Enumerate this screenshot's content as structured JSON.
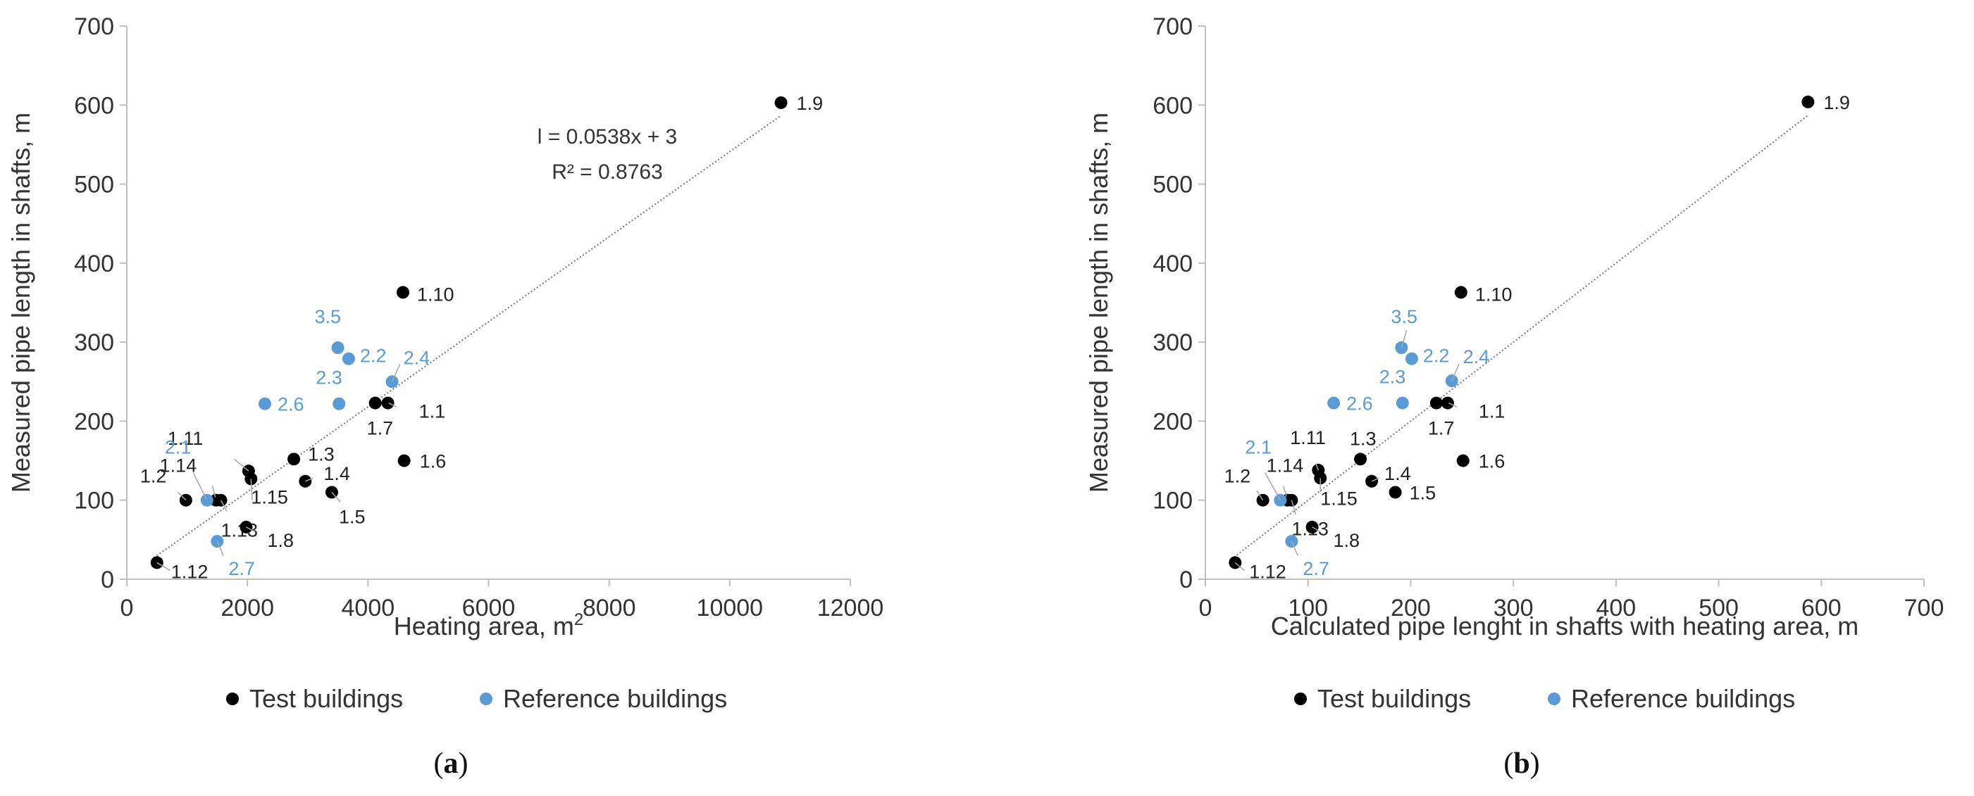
{
  "colors": {
    "test": "#000000",
    "reference": "#5b9bd5",
    "axis": "#bfbfbf",
    "trend": "#7f7f7f",
    "leader": "#a6a6a6"
  },
  "chart_data": [
    {
      "id": "a",
      "type": "scatter",
      "caption": "(a)",
      "caption_letter": "a",
      "xlabel": "Heating area, m",
      "xlabel_sup": "2",
      "ylabel": "Measured pipe length in shafts, m",
      "xlim": [
        0,
        12000
      ],
      "ylim": [
        0,
        700
      ],
      "xticks": [
        "0",
        "2000",
        "4000",
        "6000",
        "8000",
        "10000",
        "12000"
      ],
      "yticks": [
        "0",
        "100",
        "200",
        "300",
        "400",
        "500",
        "600",
        "700"
      ],
      "legend": [
        "Test buildings",
        "Reference buildings"
      ],
      "trendline": {
        "slope": 0.0538,
        "intercept": 3,
        "x_from": 450,
        "x_to": 10850,
        "equation": "l = 0.0538x + 3",
        "r2": "R² = 0.8763"
      },
      "series": [
        {
          "name": "Test buildings",
          "points": [
            {
              "label": "1.9",
              "x": 10850,
              "y": 603
            },
            {
              "label": "1.10",
              "x": 4580,
              "y": 363
            },
            {
              "label": "1.1",
              "x": 4330,
              "y": 223
            },
            {
              "label": "1.7",
              "x": 4120,
              "y": 223
            },
            {
              "label": "1.6",
              "x": 4600,
              "y": 150
            },
            {
              "label": "1.3",
              "x": 2770,
              "y": 152
            },
            {
              "label": "1.4",
              "x": 2960,
              "y": 124
            },
            {
              "label": "1.5",
              "x": 3400,
              "y": 110
            },
            {
              "label": "1.11",
              "x": 2020,
              "y": 137
            },
            {
              "label": "1.15",
              "x": 2060,
              "y": 127
            },
            {
              "label": "1.14",
              "x": 1480,
              "y": 100
            },
            {
              "label": "1.13",
              "x": 1560,
              "y": 100
            },
            {
              "label": "1.2",
              "x": 980,
              "y": 100
            },
            {
              "label": "1.8",
              "x": 1980,
              "y": 66
            },
            {
              "label": "1.12",
              "x": 500,
              "y": 21
            }
          ]
        },
        {
          "name": "Reference buildings",
          "points": [
            {
              "label": "3.5",
              "x": 3500,
              "y": 293
            },
            {
              "label": "2.2",
              "x": 3680,
              "y": 279
            },
            {
              "label": "2.4",
              "x": 4400,
              "y": 250
            },
            {
              "label": "2.3",
              "x": 3520,
              "y": 222
            },
            {
              "label": "2.6",
              "x": 2290,
              "y": 222
            },
            {
              "label": "2.1",
              "x": 1330,
              "y": 100
            },
            {
              "label": "2.7",
              "x": 1500,
              "y": 48
            }
          ]
        }
      ]
    },
    {
      "id": "b",
      "type": "scatter",
      "caption": "(b)",
      "caption_letter": "b",
      "xlabel": "Calculated pipe lenght in shafts with heating area, m",
      "xlabel_sup": "",
      "ylabel": "Measured pipe length in shafts, m",
      "xlim": [
        0,
        700
      ],
      "ylim": [
        0,
        700
      ],
      "xticks": [
        "0",
        "100",
        "200",
        "300",
        "400",
        "500",
        "600",
        "700"
      ],
      "yticks": [
        "0",
        "100",
        "200",
        "300",
        "400",
        "500",
        "600",
        "700"
      ],
      "legend": [
        "Test buildings",
        "Reference buildings"
      ],
      "trendline": {
        "slope": 1.0,
        "intercept": 0,
        "x_from": 28,
        "x_to": 587,
        "equation": "",
        "r2": ""
      },
      "series": [
        {
          "name": "Test buildings",
          "points": [
            {
              "label": "1.9",
              "x": 587,
              "y": 604
            },
            {
              "label": "1.10",
              "x": 249,
              "y": 363
            },
            {
              "label": "1.1",
              "x": 236,
              "y": 223
            },
            {
              "label": "1.7",
              "x": 225,
              "y": 223
            },
            {
              "label": "1.6",
              "x": 251,
              "y": 150
            },
            {
              "label": "1.3",
              "x": 151,
              "y": 152
            },
            {
              "label": "1.4",
              "x": 162,
              "y": 124
            },
            {
              "label": "1.5",
              "x": 185,
              "y": 110
            },
            {
              "label": "1.11",
              "x": 110,
              "y": 138
            },
            {
              "label": "1.15",
              "x": 112,
              "y": 128
            },
            {
              "label": "1.14",
              "x": 80,
              "y": 100
            },
            {
              "label": "1.13",
              "x": 84,
              "y": 100
            },
            {
              "label": "1.2",
              "x": 56,
              "y": 100
            },
            {
              "label": "1.8",
              "x": 104,
              "y": 66
            },
            {
              "label": "1.12",
              "x": 29,
              "y": 21
            }
          ]
        },
        {
          "name": "Reference buildings",
          "points": [
            {
              "label": "3.5",
              "x": 191,
              "y": 293
            },
            {
              "label": "2.2",
              "x": 201,
              "y": 279
            },
            {
              "label": "2.4",
              "x": 240,
              "y": 251
            },
            {
              "label": "2.3",
              "x": 192,
              "y": 223
            },
            {
              "label": "2.6",
              "x": 125,
              "y": 223
            },
            {
              "label": "2.1",
              "x": 73,
              "y": 100
            },
            {
              "label": "2.7",
              "x": 84,
              "y": 48
            }
          ]
        }
      ]
    }
  ]
}
